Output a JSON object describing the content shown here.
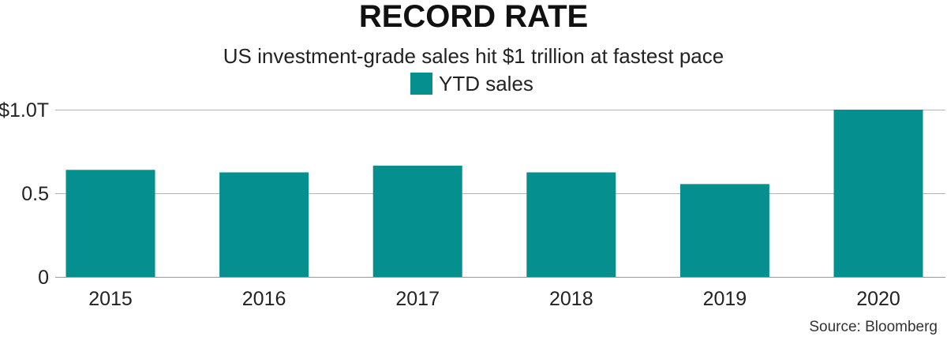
{
  "chart_data": {
    "type": "bar",
    "title": "RECORD RATE",
    "subtitle": "US investment-grade sales hit $1 trillion at fastest pace",
    "categories": [
      "2015",
      "2016",
      "2017",
      "2018",
      "2019",
      "2020"
    ],
    "series": [
      {
        "name": "YTD sales",
        "values": [
          0.64,
          0.625,
          0.665,
          0.625,
          0.555,
          1.0
        ],
        "color": "#05908f"
      }
    ],
    "xlabel": "",
    "ylabel": "",
    "ylim": [
      0,
      1.0
    ],
    "yticks": [
      {
        "value": 0,
        "label": "0"
      },
      {
        "value": 0.5,
        "label": "0.5"
      },
      {
        "value": 1.0,
        "label": "$1.0T"
      }
    ],
    "grid": true,
    "legend_position": "top-center",
    "source": "Source: Bloomberg"
  }
}
